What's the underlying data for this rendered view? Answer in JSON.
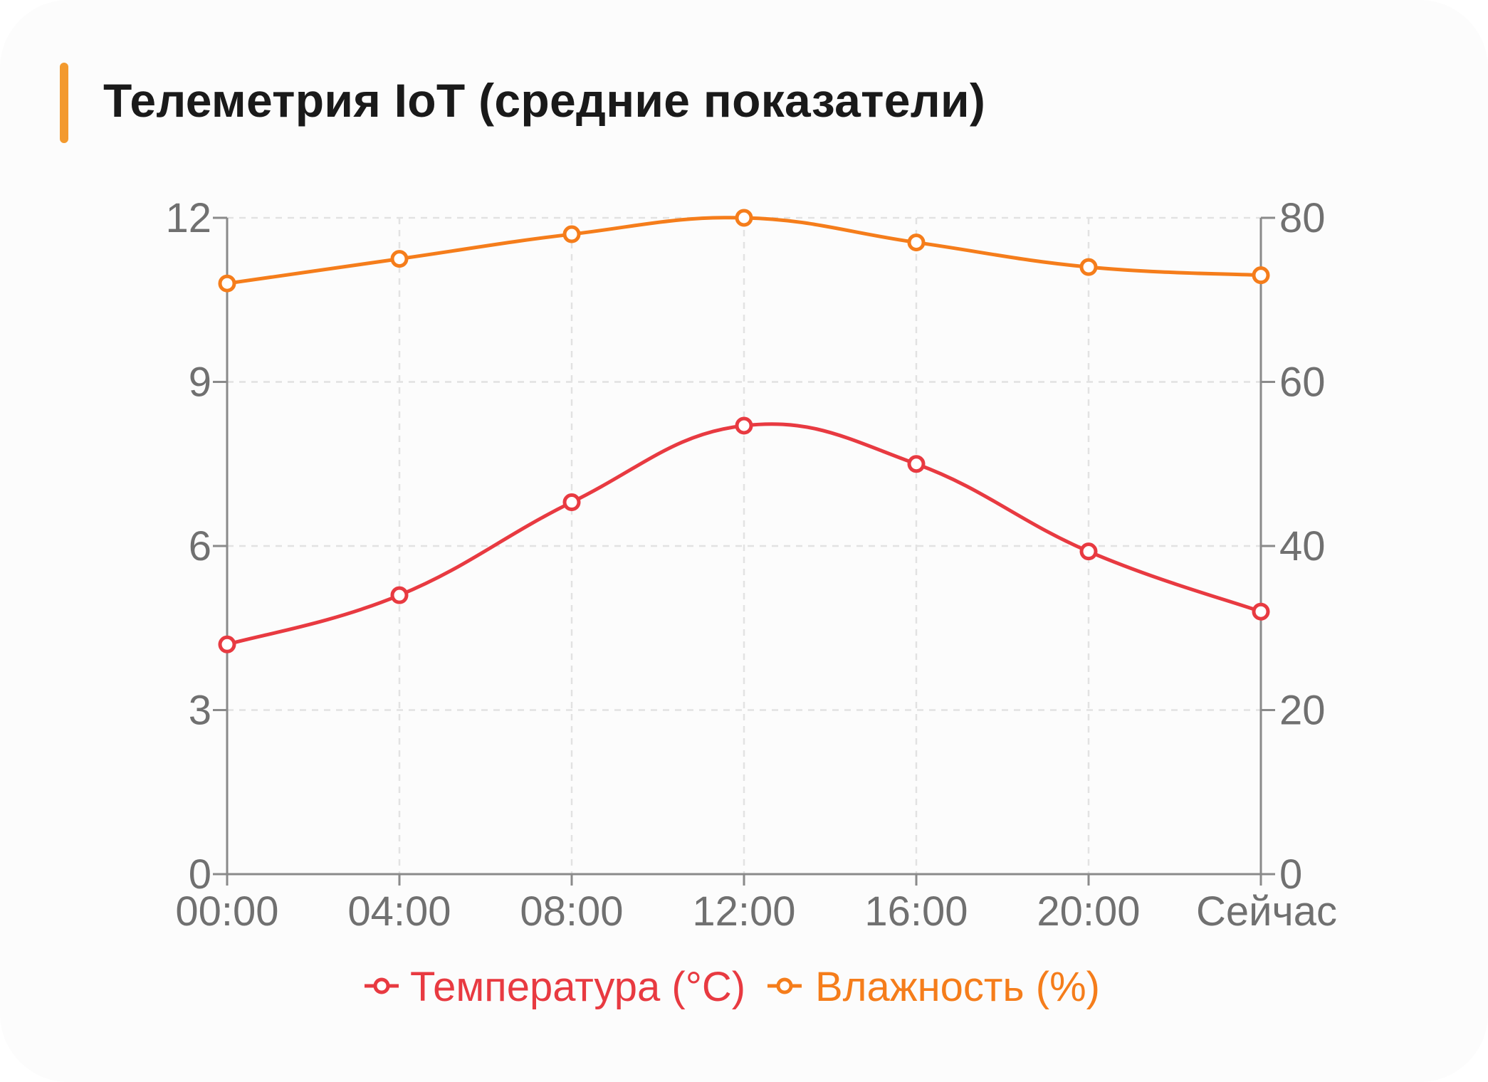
{
  "title": "Телеметрия IoT (средние показатели)",
  "colors": {
    "accent": "#f39a2e",
    "temperature": "#e83a41",
    "humidity": "#f57d1b",
    "axis": "#8a8a8a",
    "grid": "#e2e2e2",
    "tick_text": "#707070"
  },
  "chart_data": {
    "type": "line",
    "x": [
      "00:00",
      "04:00",
      "08:00",
      "12:00",
      "16:00",
      "20:00",
      "Сейчас"
    ],
    "series": [
      {
        "name": "Температура (°C)",
        "axis": "left",
        "color": "#e83a41",
        "values": [
          4.2,
          5.1,
          6.8,
          8.2,
          7.5,
          5.9,
          4.8
        ]
      },
      {
        "name": "Влажность (%)",
        "axis": "right",
        "color": "#f57d1b",
        "values": [
          72,
          75,
          78,
          80,
          77,
          74,
          73
        ]
      }
    ],
    "y_left": {
      "ticks": [
        "0",
        "3",
        "6",
        "9",
        "12"
      ],
      "range": [
        0,
        12
      ]
    },
    "y_right": {
      "ticks": [
        "0",
        "20",
        "40",
        "60",
        "80"
      ],
      "range": [
        0,
        80
      ]
    },
    "grid": true,
    "legend_position": "bottom",
    "smooth": true,
    "markers": "hollow-circle"
  }
}
